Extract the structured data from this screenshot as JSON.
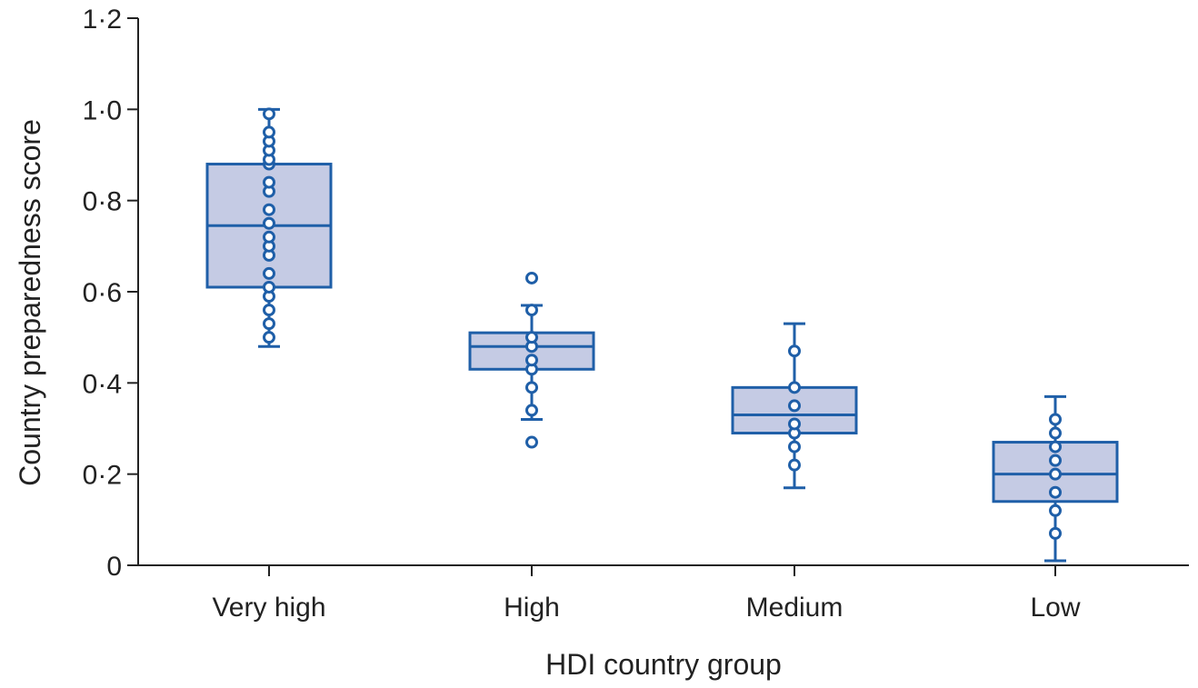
{
  "chart_data": {
    "type": "box",
    "xlabel": "HDI country group",
    "ylabel": "Country preparedness score",
    "ylim": [
      0,
      1.2
    ],
    "yticks": [
      0,
      0.2,
      0.4,
      0.6,
      0.8,
      1.0,
      1.2
    ],
    "ytick_labels": [
      "0",
      "0·2",
      "0·4",
      "0·6",
      "0·8",
      "1·0",
      "1·2"
    ],
    "colors": {
      "box_fill": "#c5cbe4",
      "stroke": "#1f5fa8",
      "axis": "#222222"
    },
    "groups": [
      {
        "label": "Very high",
        "whisker_low": 0.48,
        "q1": 0.61,
        "median": 0.745,
        "q3": 0.88,
        "whisker_high": 1.0,
        "points": [
          0.5,
          0.53,
          0.56,
          0.59,
          0.61,
          0.64,
          0.68,
          0.7,
          0.72,
          0.75,
          0.78,
          0.82,
          0.84,
          0.88,
          0.89,
          0.91,
          0.93,
          0.95,
          0.99
        ]
      },
      {
        "label": "High",
        "whisker_low": 0.32,
        "q1": 0.43,
        "median": 0.48,
        "q3": 0.51,
        "whisker_high": 0.57,
        "points": [
          0.27,
          0.34,
          0.39,
          0.43,
          0.45,
          0.48,
          0.5,
          0.56,
          0.63
        ]
      },
      {
        "label": "Medium",
        "whisker_low": 0.17,
        "q1": 0.29,
        "median": 0.33,
        "q3": 0.39,
        "whisker_high": 0.53,
        "points": [
          0.22,
          0.26,
          0.29,
          0.31,
          0.35,
          0.39,
          0.47
        ]
      },
      {
        "label": "Low",
        "whisker_low": 0.01,
        "q1": 0.14,
        "median": 0.2,
        "q3": 0.27,
        "whisker_high": 0.37,
        "points": [
          0.07,
          0.12,
          0.16,
          0.2,
          0.23,
          0.26,
          0.29,
          0.32
        ]
      }
    ]
  }
}
